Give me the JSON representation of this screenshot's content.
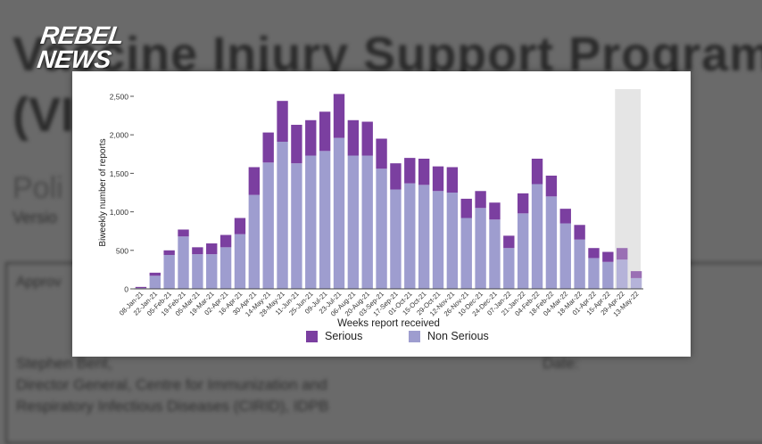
{
  "background_document": {
    "title_line1": "Vaccine Injury Support Program",
    "title_line2": "(VI",
    "subtitle": "Poli",
    "version": "Versio",
    "approval": "Approv",
    "signatory_name": "Stephen Bent,",
    "signatory_title": "Director General, Centre for Immunization and",
    "signatory_title2": "Respiratory Infectious Diseases (CIRID), IDPB",
    "date_label": "Date:"
  },
  "logo": {
    "line1": "REBEL",
    "line2": "NEWS"
  },
  "colors": {
    "serious": "#7b3fa0",
    "non_serious": "#9e9dcf",
    "serious_faded": "#9a6fb4",
    "non_serious_faded": "#b5b3d9",
    "shaded_region": "#e5e5e5"
  },
  "chart_data": {
    "type": "bar",
    "stacked": true,
    "xlabel": "Weeks report received",
    "ylabel": "Biweekly number of reports",
    "ylim": [
      0,
      2500
    ],
    "yticks": [
      "0",
      "500",
      "1,000",
      "1,500",
      "2,000",
      "2,500"
    ],
    "ytick_values": [
      0,
      500,
      1000,
      1500,
      2000,
      2500
    ],
    "grid": false,
    "legend_position": "bottom",
    "shaded_categories": [
      "29-Apr-22",
      "13-May-22"
    ],
    "categories": [
      "08-Jan-21",
      "22-Jan-21",
      "05-Feb-21",
      "19-Feb-21",
      "05-Mar-21",
      "19-Mar-21",
      "02-Apr-21",
      "16-Apr-21",
      "30-Apr-21",
      "14-May-21",
      "28-May-21",
      "11-Jun-21",
      "25-Jun-21",
      "09-Jul-21",
      "23-Jul-21",
      "06-Aug-21",
      "20-Aug-21",
      "03-Sep-21",
      "17-Sep-21",
      "01-Oct-21",
      "15-Oct-21",
      "29-Oct-21",
      "12-Nov-21",
      "26-Nov-21",
      "10-Dec-21",
      "24-Dec-21",
      "07-Jan-22",
      "21-Jan-22",
      "04-Feb-22",
      "18-Feb-22",
      "04-Mar-22",
      "18-Mar-22",
      "01-Apr-22",
      "15-Apr-22",
      "29-Apr-22",
      "13-May-22"
    ],
    "series": [
      {
        "name": "Non Serious",
        "values": [
          10,
          170,
          440,
          680,
          450,
          450,
          540,
          710,
          1220,
          1640,
          1910,
          1630,
          1730,
          1790,
          1960,
          1730,
          1730,
          1560,
          1290,
          1370,
          1350,
          1270,
          1250,
          920,
          1050,
          900,
          530,
          980,
          1360,
          1200,
          850,
          640,
          400,
          350,
          380,
          140
        ]
      },
      {
        "name": "Serious",
        "values": [
          15,
          40,
          60,
          90,
          90,
          140,
          160,
          210,
          360,
          390,
          530,
          500,
          460,
          510,
          570,
          460,
          440,
          390,
          340,
          330,
          340,
          320,
          330,
          250,
          220,
          220,
          160,
          260,
          330,
          270,
          190,
          190,
          130,
          130,
          150,
          90
        ]
      }
    ]
  }
}
